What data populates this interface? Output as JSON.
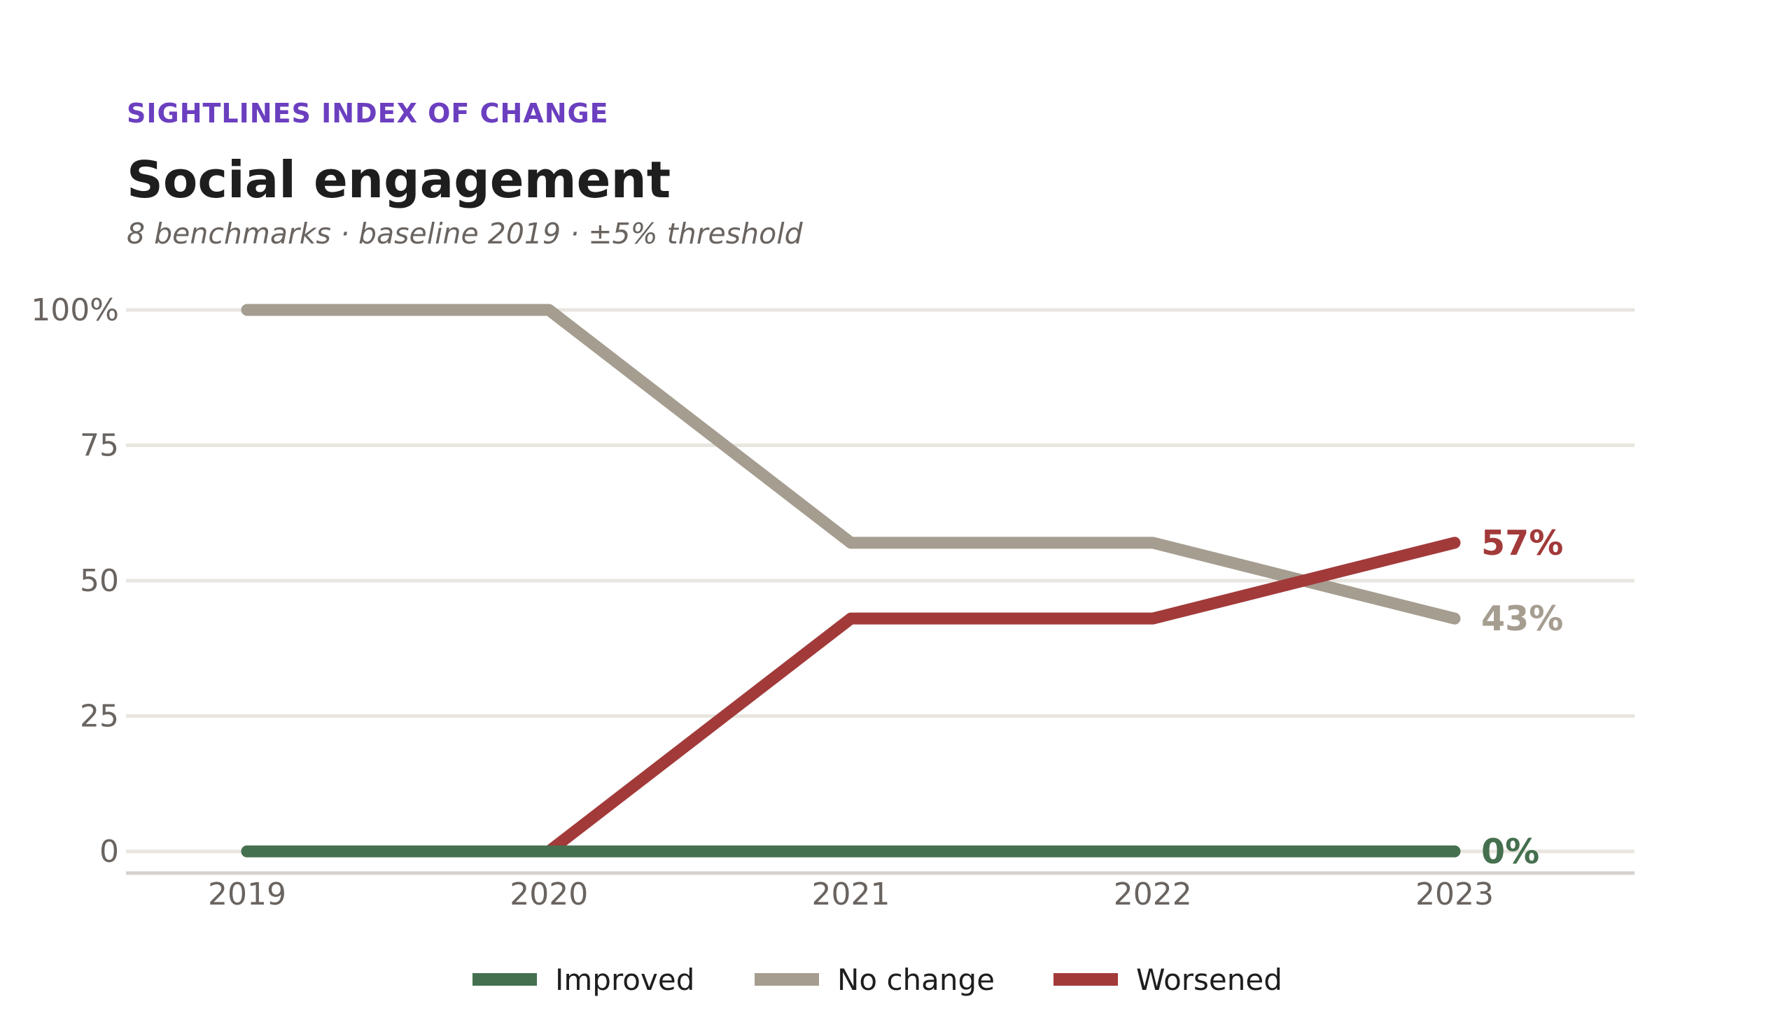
{
  "header": {
    "kicker": "SIGHTLINES INDEX OF CHANGE",
    "title": "Social engagement",
    "subtitle": "8 benchmarks  ·  baseline 2019  ·  ±5% threshold"
  },
  "chart_data": {
    "type": "line",
    "title": "Social engagement",
    "subtitle": "8 benchmarks  ·  baseline 2019  ·  ±5% threshold",
    "x": [
      "2019",
      "2020",
      "2021",
      "2022",
      "2023"
    ],
    "ylim": [
      0,
      100
    ],
    "yticks": [
      {
        "value": 0,
        "label": "0"
      },
      {
        "value": 25,
        "label": "25"
      },
      {
        "value": 50,
        "label": "50"
      },
      {
        "value": 75,
        "label": "75"
      },
      {
        "value": 100,
        "label": "100%"
      }
    ],
    "grid": true,
    "legend_position": "bottom",
    "series": [
      {
        "name": "Improved",
        "color": "#45704f",
        "values": [
          0,
          0,
          0,
          0,
          0
        ],
        "end_label": "0%"
      },
      {
        "name": "No change",
        "color": "#a59d90",
        "values": [
          100,
          100,
          57,
          57,
          43
        ],
        "end_label": "43%"
      },
      {
        "name": "Worsened",
        "color": "#a23a3a",
        "values": [
          0,
          0,
          43,
          43,
          57
        ],
        "end_label": "57%"
      }
    ]
  },
  "colors": {
    "kicker": "#6b3fbf",
    "grid": "#e8e6df",
    "axis": "#d6d2cb",
    "tick_text": "#6a6460"
  }
}
